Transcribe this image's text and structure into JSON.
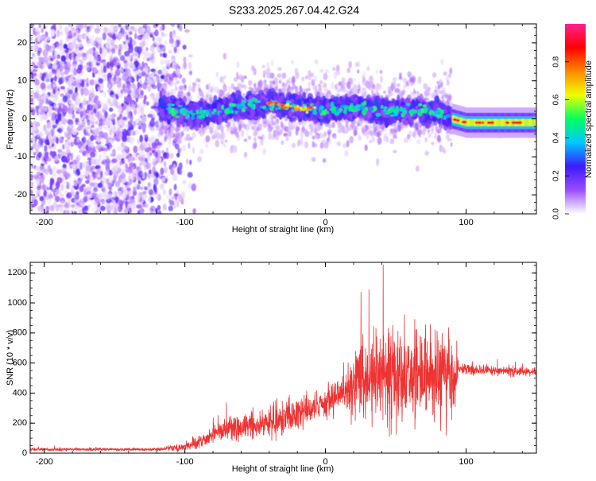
{
  "title": "S233.2025.267.04.42.G24",
  "chart_data": [
    {
      "type": "heatmap",
      "xlabel": "Height of straight line (km)",
      "ylabel": "Frequency (Hz)",
      "xlim": [
        -210,
        150
      ],
      "ylim": [
        -25,
        25
      ],
      "xticks": [
        -200,
        -100,
        0,
        100
      ],
      "yticks": [
        -20,
        -10,
        0,
        10,
        20
      ],
      "grid": false,
      "colorbar": {
        "label": "Normalized spectral amplitude",
        "range": [
          0,
          1
        ],
        "ticks": [
          0.0,
          0.2,
          0.4,
          0.6,
          0.8
        ],
        "colors": [
          "#ffffff",
          "#9b4dff",
          "#3b1bff",
          "#00c8ff",
          "#00ff60",
          "#f0ff00",
          "#ff8800",
          "#ff0000",
          "#ff2090"
        ]
      },
      "ridge": [
        {
          "x": -115,
          "y": 3
        },
        {
          "x": -90,
          "y": 1
        },
        {
          "x": -60,
          "y": 3
        },
        {
          "x": -40,
          "y": 4
        },
        {
          "x": -20,
          "y": 3
        },
        {
          "x": 0,
          "y": 2
        },
        {
          "x": 20,
          "y": 3
        },
        {
          "x": 40,
          "y": 2
        },
        {
          "x": 60,
          "y": 2
        },
        {
          "x": 80,
          "y": 2
        },
        {
          "x": 90,
          "y": 0
        },
        {
          "x": 100,
          "y": -1
        },
        {
          "x": 120,
          "y": -1
        },
        {
          "x": 150,
          "y": -1
        }
      ]
    },
    {
      "type": "line",
      "xlabel": "Height of straight line (km)",
      "ylabel": "SNR (10 * v/v)",
      "xlim": [
        -210,
        150
      ],
      "ylim": [
        0,
        1270
      ],
      "xticks": [
        -200,
        -100,
        0,
        100
      ],
      "yticks": [
        0,
        200,
        400,
        600,
        800,
        1000,
        1200
      ],
      "grid": false,
      "series": [
        {
          "color": "#ee3333",
          "envelope": [
            {
              "x": -210,
              "base": 25,
              "amp": 15
            },
            {
              "x": -120,
              "base": 25,
              "amp": 15
            },
            {
              "x": -100,
              "base": 40,
              "amp": 40
            },
            {
              "x": -85,
              "base": 90,
              "amp": 80
            },
            {
              "x": -75,
              "base": 150,
              "amp": 120
            },
            {
              "x": -50,
              "base": 180,
              "amp": 140
            },
            {
              "x": -30,
              "base": 230,
              "amp": 160
            },
            {
              "x": -10,
              "base": 300,
              "amp": 150
            },
            {
              "x": 10,
              "base": 380,
              "amp": 170
            },
            {
              "x": 25,
              "base": 480,
              "amp": 380
            },
            {
              "x": 50,
              "base": 520,
              "amp": 520
            },
            {
              "x": 70,
              "base": 520,
              "amp": 430
            },
            {
              "x": 92,
              "base": 500,
              "amp": 420
            },
            {
              "x": 95,
              "base": 560,
              "amp": 50
            },
            {
              "x": 120,
              "base": 550,
              "amp": 50
            },
            {
              "x": 150,
              "base": 540,
              "amp": 40
            }
          ]
        }
      ]
    }
  ]
}
